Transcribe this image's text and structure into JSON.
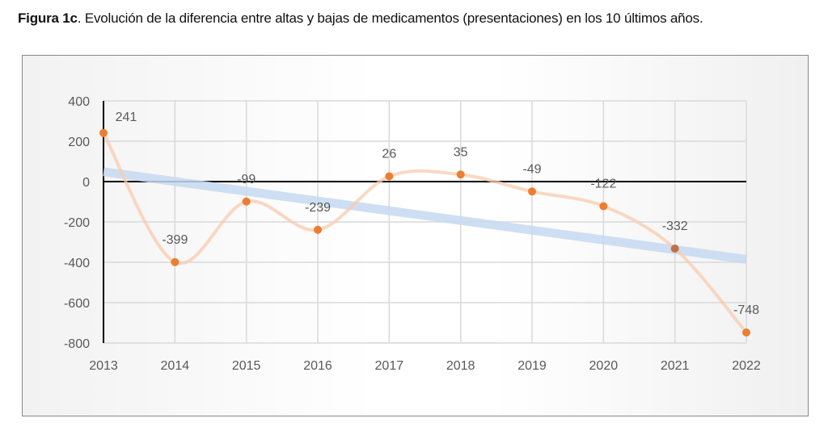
{
  "title": {
    "bold": "Figura 1c",
    "rest": ". Evolución de la diferencia entre altas y bajas de medicamentos (presentaciones) en los 10 últimos años."
  },
  "chart_data": {
    "type": "line",
    "categories": [
      "2013",
      "2014",
      "2015",
      "2016",
      "2017",
      "2018",
      "2019",
      "2020",
      "2021",
      "2022"
    ],
    "series": [
      {
        "values": [
          241,
          -399,
          -99,
          -239,
          26,
          35,
          -49,
          -122,
          -332,
          -748
        ],
        "color": "#ED7D31",
        "smoothed": true,
        "data_labels": true
      }
    ],
    "trendline": {
      "type": "linear",
      "color": "#C5D9F1"
    },
    "ylim": [
      -800,
      400
    ],
    "yticks": [
      400,
      200,
      0,
      -200,
      -400,
      -600,
      -800
    ],
    "grid": true,
    "xlabel": "",
    "ylabel": "",
    "legend": "none"
  }
}
